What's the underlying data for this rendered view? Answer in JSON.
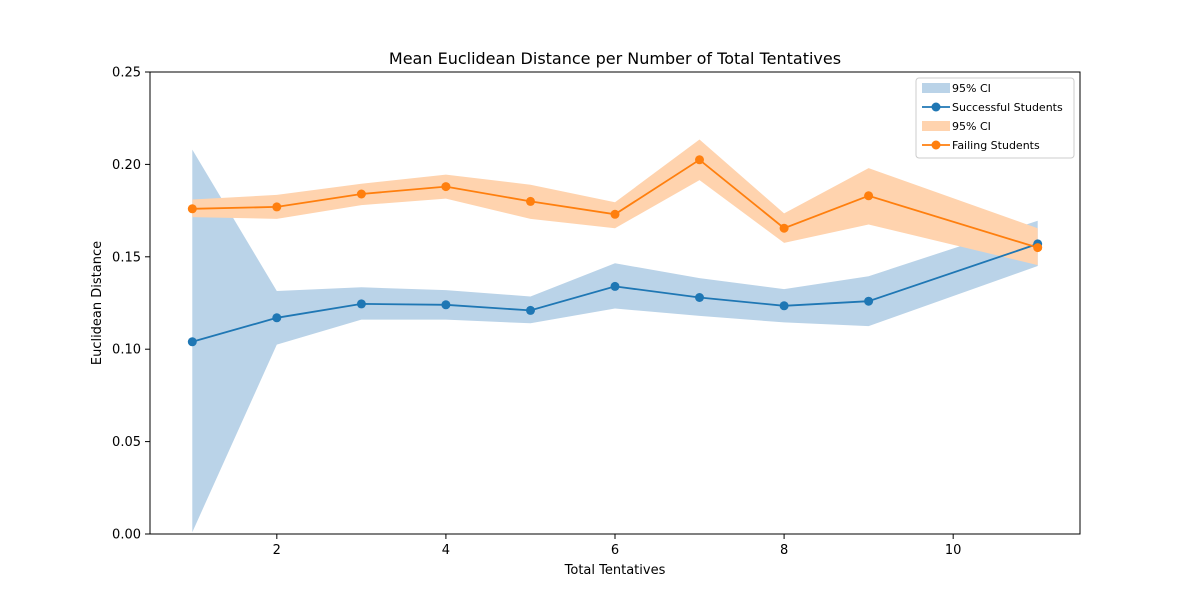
{
  "chart_data": {
    "type": "line",
    "title": "Mean Euclidean Distance per Number of Total Tentatives",
    "xlabel": "Total Tentatives",
    "ylabel": "Euclidean Distance",
    "xlim": [
      0.5,
      11.5
    ],
    "ylim": [
      0.0,
      0.25
    ],
    "xticks": [
      2,
      4,
      6,
      8,
      10
    ],
    "yticks": [
      0.0,
      0.05,
      0.1,
      0.15,
      0.2,
      0.25
    ],
    "grid": false,
    "legend_position": "top-right",
    "x": [
      1,
      2,
      3,
      4,
      5,
      6,
      7,
      8,
      9,
      11
    ],
    "series": [
      {
        "name": "Successful Students",
        "ci_label": "95% CI",
        "color": "#1f77b4",
        "band_color": "#bad3e8",
        "values": [
          0.104,
          0.117,
          0.1245,
          0.124,
          0.121,
          0.134,
          0.128,
          0.1235,
          0.126,
          0.157
        ],
        "ci_lower": [
          0.001,
          0.1025,
          0.116,
          0.116,
          0.114,
          0.122,
          0.118,
          0.1145,
          0.1125,
          0.145
        ],
        "ci_upper": [
          0.208,
          0.1315,
          0.1335,
          0.132,
          0.1285,
          0.1465,
          0.1385,
          0.1325,
          0.1395,
          0.1695
        ]
      },
      {
        "name": "Failing Students",
        "ci_label": "95% CI",
        "color": "#ff7f0e",
        "band_color": "#ffd3ae",
        "values": [
          0.176,
          0.177,
          0.184,
          0.188,
          0.18,
          0.173,
          0.2025,
          0.1655,
          0.183,
          0.155
        ],
        "ci_lower": [
          0.1715,
          0.1705,
          0.178,
          0.1815,
          0.1705,
          0.1655,
          0.1915,
          0.1575,
          0.1675,
          0.1455
        ],
        "ci_upper": [
          0.181,
          0.1835,
          0.1895,
          0.1945,
          0.189,
          0.1795,
          0.2135,
          0.1735,
          0.198,
          0.1655
        ]
      }
    ]
  }
}
